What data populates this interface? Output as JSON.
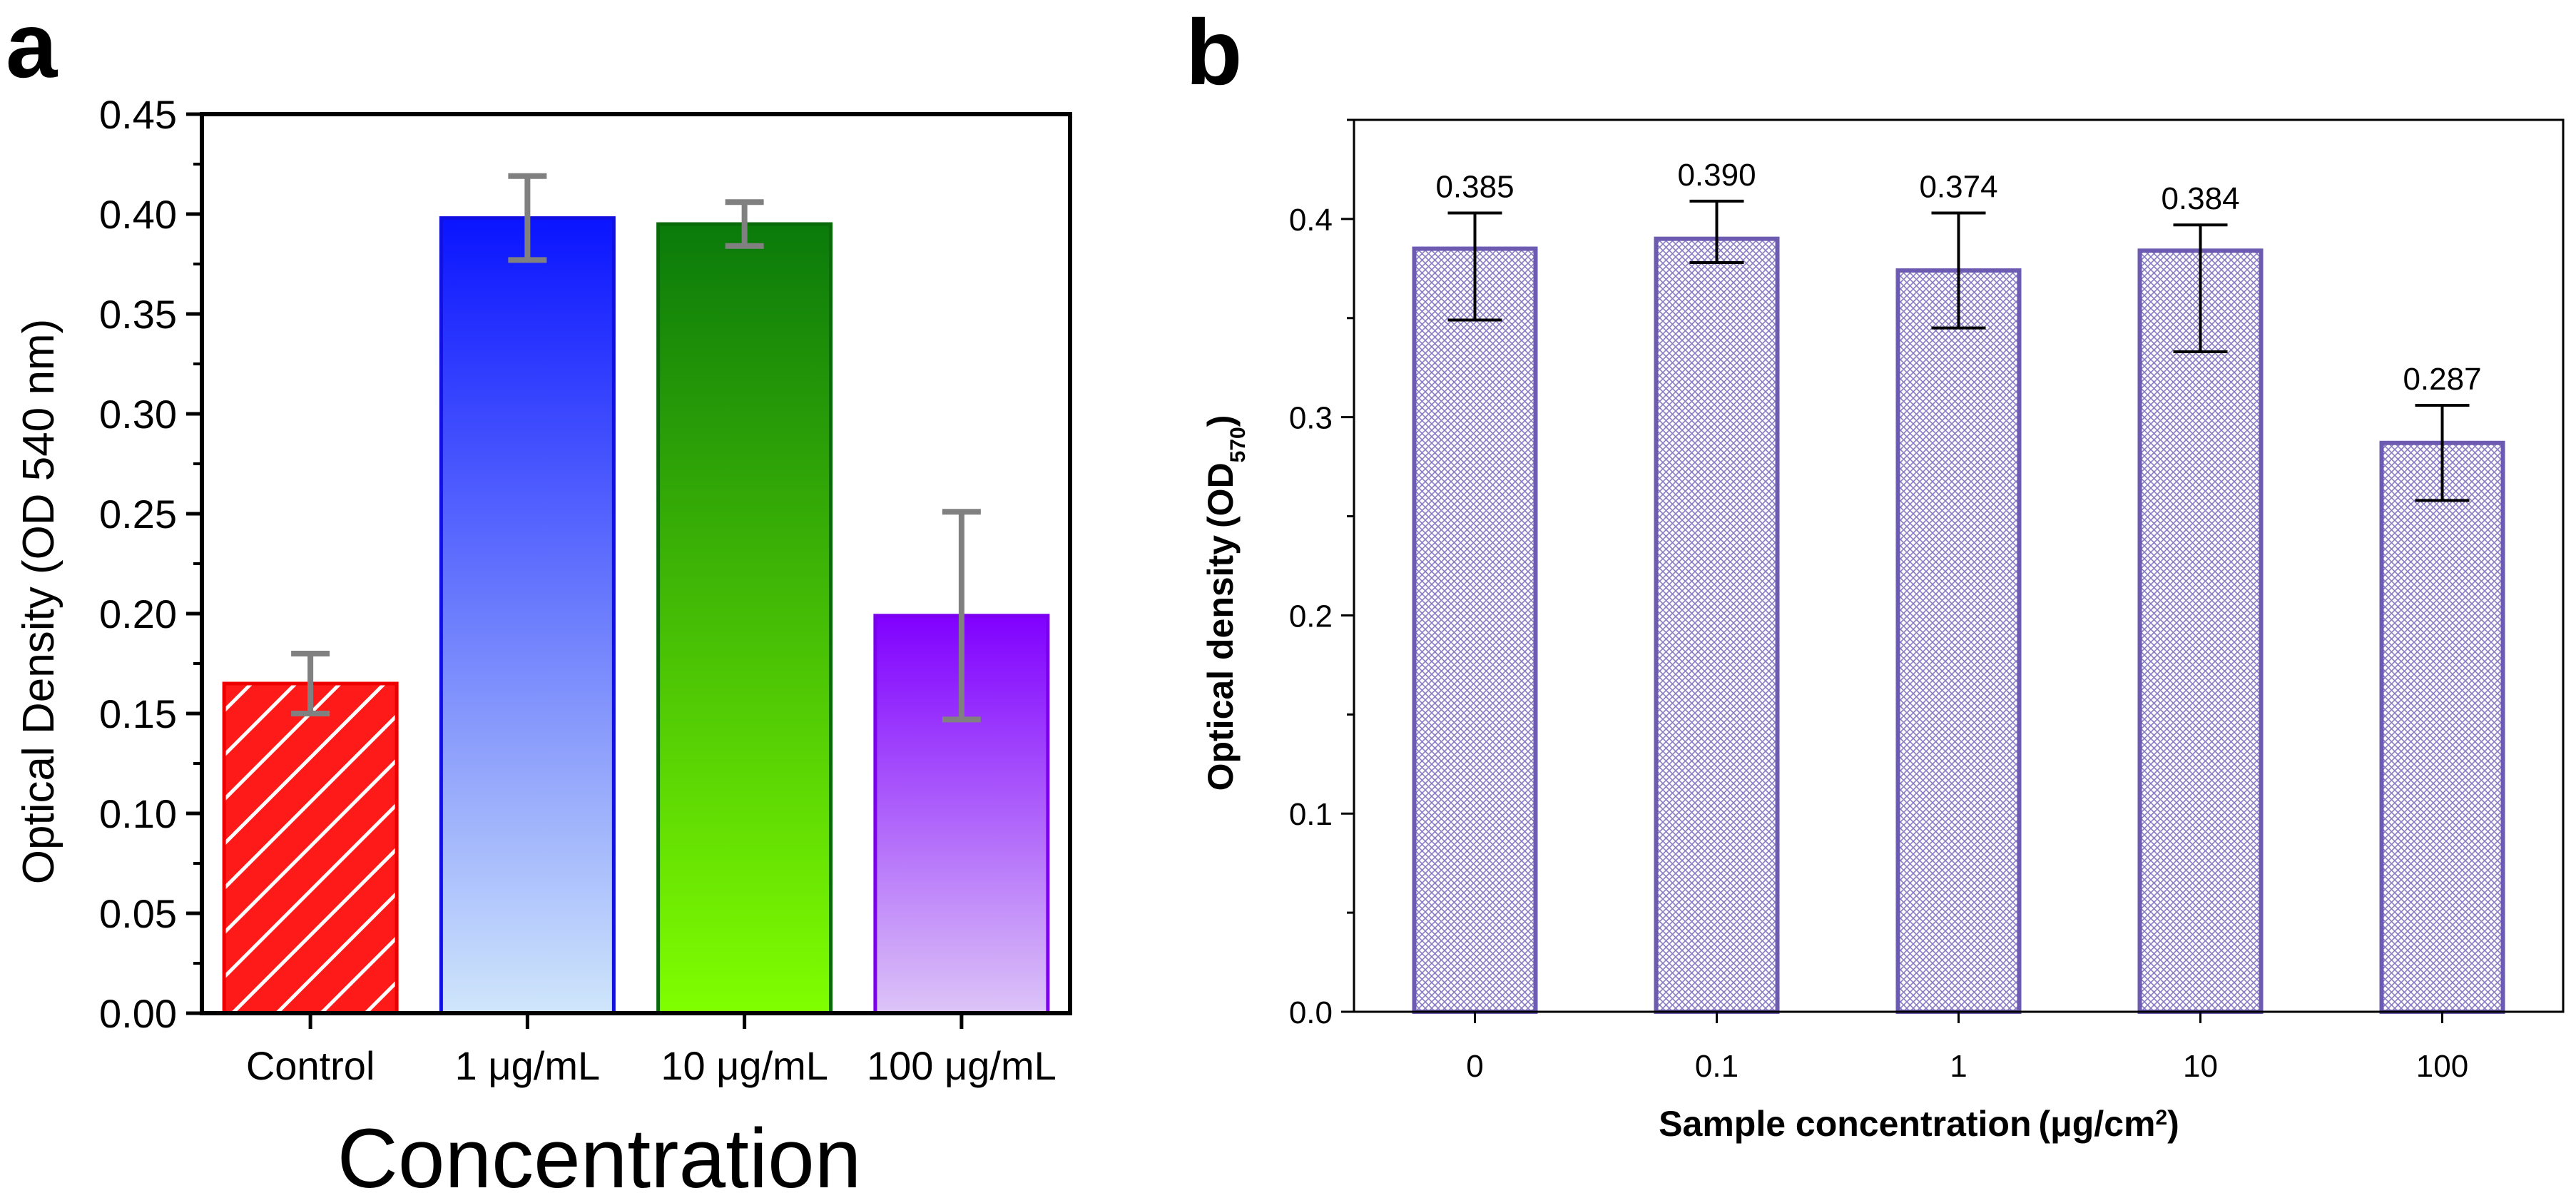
{
  "panels": {
    "a": {
      "label": "a"
    },
    "b": {
      "label": "b"
    }
  },
  "chart_data": [
    {
      "id": "a",
      "type": "bar",
      "title": "",
      "xlabel": "Concentration",
      "ylabel": "Optical Density (OD 540 nm)",
      "categories": [
        "Control",
        "1 μg/mL",
        "10 μg/mL",
        "100 μg/mL"
      ],
      "values": [
        0.165,
        0.398,
        0.395,
        0.199
      ],
      "errors": [
        0.015,
        0.021,
        0.011,
        0.052
      ],
      "ylim": [
        0,
        0.45
      ],
      "yticks": [
        "0.00",
        "0.05",
        "0.10",
        "0.15",
        "0.20",
        "0.25",
        "0.30",
        "0.35",
        "0.40",
        "0.45"
      ],
      "bar_styles": [
        {
          "fill": "#ff0000",
          "top": "#ff0000",
          "bottom": "#ff0000",
          "edge": "#ee0000",
          "hatch": true
        },
        {
          "top": "#0a14ff",
          "bottom": "#cfe6fb",
          "edge": "#1010e0"
        },
        {
          "top": "#0a7a0a",
          "bottom": "#80ff00",
          "edge": "#0a6a0a"
        },
        {
          "top": "#8000ff",
          "bottom": "#dcc4f7",
          "edge": "#7a00ee"
        }
      ],
      "error_color": "#808080",
      "grid": false
    },
    {
      "id": "b",
      "type": "bar",
      "title": "",
      "xlabel": "Sample concentration",
      "xlabel_unit_open": "(",
      "xlabel_unit_text": "μg/cm",
      "xlabel_unit_sup": "2",
      "xlabel_unit_close": ")",
      "ylabel": "Optical density",
      "ylabel_unit_open": "(",
      "ylabel_unit_text": "OD",
      "ylabel_unit_sub": "570",
      "ylabel_unit_close": ")",
      "categories": [
        "0",
        "0.1",
        "1",
        "10",
        "100"
      ],
      "values": [
        0.385,
        0.39,
        0.374,
        0.384,
        0.287
      ],
      "labels": [
        "0.385",
        "0.390",
        "0.374",
        "0.384",
        "0.287"
      ],
      "err_low": [
        0.036,
        0.012,
        0.029,
        0.051,
        0.029
      ],
      "err_high": [
        0.018,
        0.019,
        0.029,
        0.013,
        0.019
      ],
      "ylim": [
        0,
        0.45
      ],
      "yticks": [
        "0.0",
        "0.1",
        "0.2",
        "0.3",
        "0.4"
      ],
      "bar_edge": "#6c5bb0",
      "hatch_color": "#8a7cc4",
      "grid": false
    }
  ]
}
